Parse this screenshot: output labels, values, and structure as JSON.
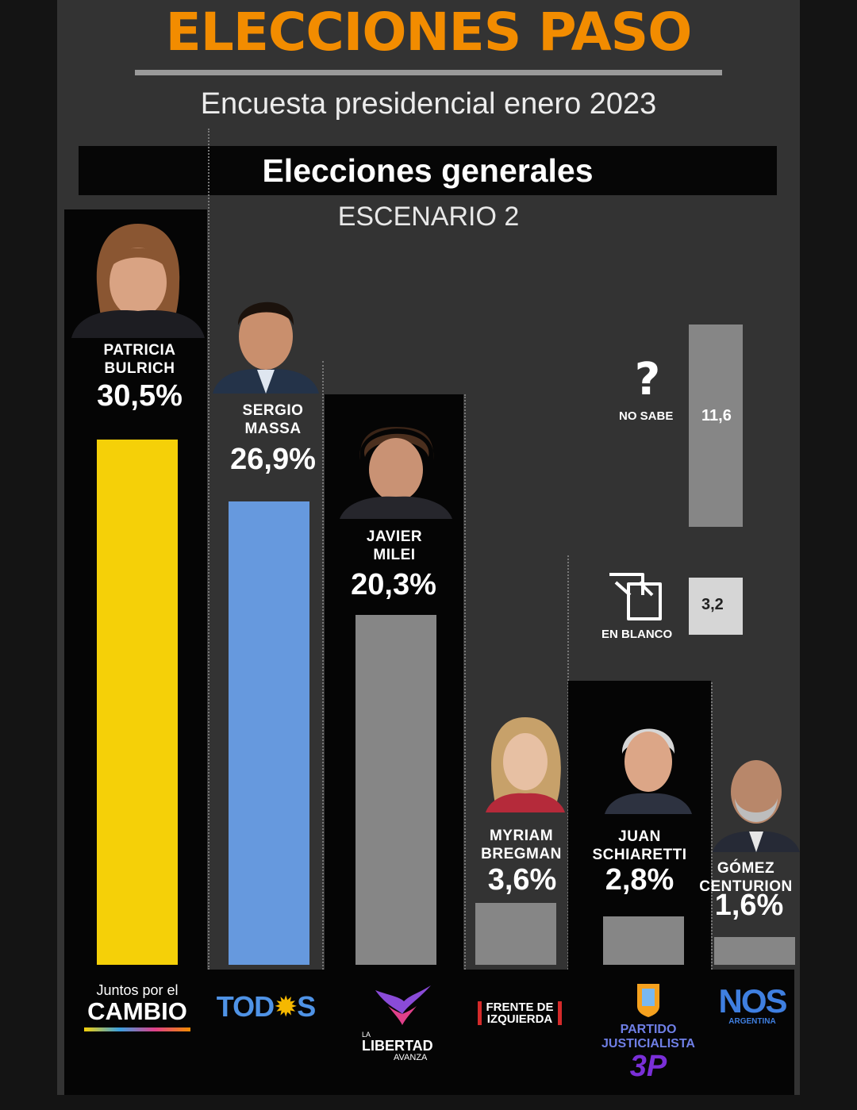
{
  "header": {
    "title": "ELECCIONES PASO",
    "subtitle": "Encuesta presidencial enero 2023",
    "banner": "Elecciones generales",
    "scenario": "ESCENARIO 2"
  },
  "colors": {
    "title": "#f28c00",
    "background": "#333333",
    "panel": "#050505",
    "bulrich": "#f5d008",
    "massa": "#6699de",
    "other": "#868686",
    "blank": "#d6d6d6"
  },
  "chart_data": {
    "type": "bar",
    "categories": [
      "PATRICIA BULRICH",
      "SERGIO MASSA",
      "JAVIER MILEI",
      "MYRIAM BREGMAN",
      "JUAN SCHIARETTI",
      "GÓMEZ CENTURION"
    ],
    "values": [
      30.5,
      26.9,
      20.3,
      3.6,
      2.8,
      1.6
    ],
    "value_labels": [
      "30,5%",
      "26,9%",
      "20,3%",
      "3,6%",
      "2,8%",
      "1,6%"
    ],
    "parties": [
      "Juntos por el CAMBIO",
      "TODOS",
      "LA LIBERTAD AVANZA",
      "FRENTE DE IZQUIERDA",
      "PARTIDO JUSTICIALISTA",
      "NOS ARGENTINA"
    ],
    "bar_colors": [
      "#f5d008",
      "#6699de",
      "#868686",
      "#868686",
      "#868686",
      "#868686"
    ],
    "extra": [
      {
        "label": "NO SABE",
        "value": 11.6,
        "value_label": "11,6",
        "icon": "question-mark-icon"
      },
      {
        "label": "EN BLANCO",
        "value": 3.2,
        "value_label": "3,2",
        "icon": "ballot-box-icon"
      }
    ],
    "title": "Elecciones generales",
    "subtitle": "ESCENARIO 2",
    "xlabel": "",
    "ylabel": "",
    "grid": false,
    "legend": "none"
  },
  "candidates": [
    {
      "first": "PATRICIA",
      "last": "BULRICH",
      "pct": "30,5%"
    },
    {
      "first": "SERGIO",
      "last": "MASSA",
      "pct": "26,9%"
    },
    {
      "first": "JAVIER",
      "last": "MILEI",
      "pct": "20,3%"
    },
    {
      "first": "MYRIAM",
      "last": "BREGMAN",
      "pct": "3,6%"
    },
    {
      "first": "JUAN",
      "last": "SCHIARETTI",
      "pct": "2,8%"
    },
    {
      "first": "GÓMEZ",
      "last": "CENTURION",
      "pct": "1,6%"
    }
  ],
  "logos": {
    "cambio": {
      "line1": "Juntos por el",
      "line2": "CAMBIO"
    },
    "todos": {
      "text_a": "TOD",
      "text_b": "S"
    },
    "libertad": {
      "line1": "LA",
      "line2": "LIBERTAD",
      "line3": "AVANZA"
    },
    "frente": {
      "line1": "FRENTE DE",
      "line2": "IZQUIERDA"
    },
    "pj": {
      "line1": "PARTIDO",
      "line2": "JUSTICIALISTA",
      "badge": "3P"
    },
    "nos": {
      "line1": "NOS",
      "line2": "ARGENTINA"
    }
  }
}
